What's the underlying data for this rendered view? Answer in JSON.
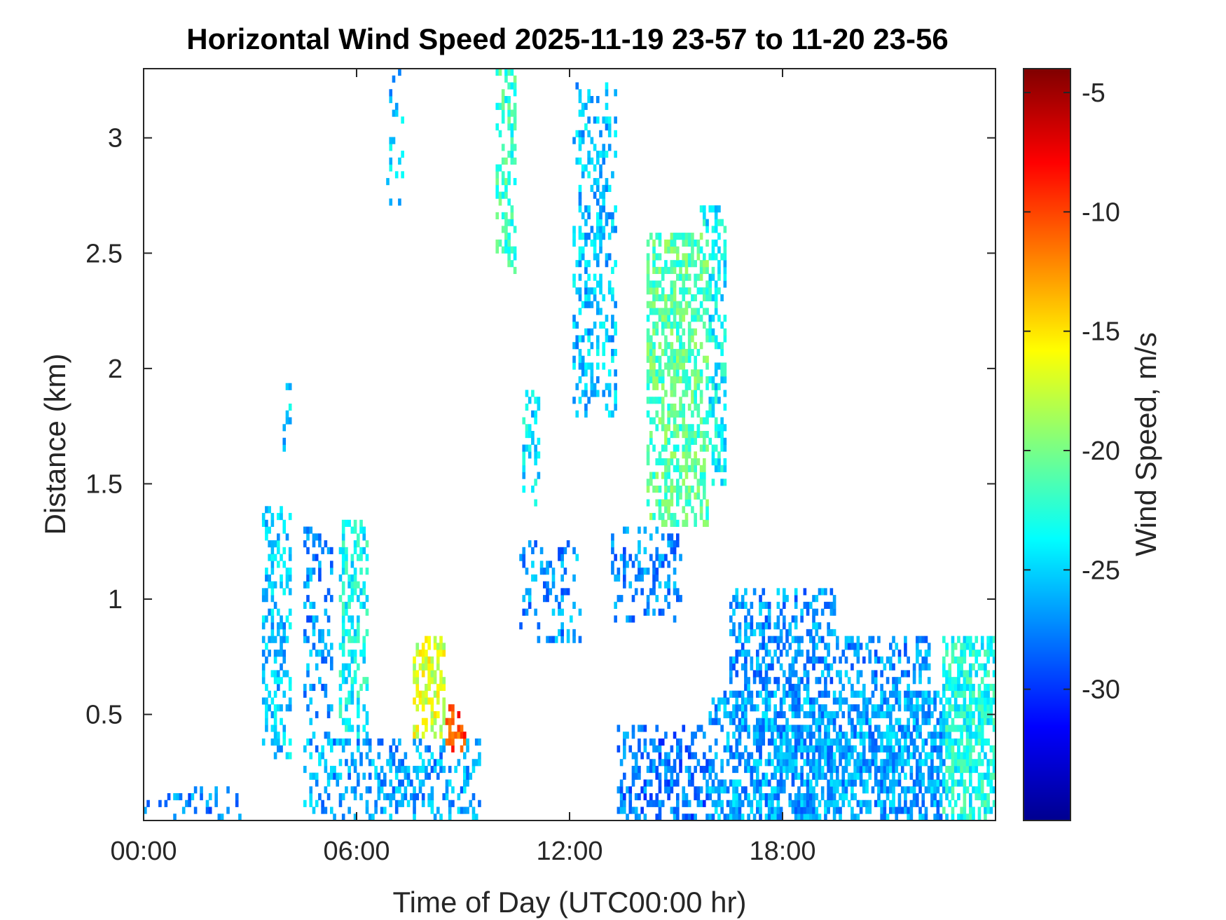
{
  "chart_data": {
    "type": "heatmap",
    "title": "Horizontal Wind Speed 2025-11-19 23-57 to 11-20 23-56",
    "xlabel": "Time of Day (UTC00:00 hr)",
    "ylabel": "Distance (km)",
    "xlim": [
      0,
      24
    ],
    "ylim": [
      0.04,
      3.3
    ],
    "xticks": [
      {
        "value": 0,
        "label": "00:00"
      },
      {
        "value": 6,
        "label": "06:00"
      },
      {
        "value": 12,
        "label": "12:00"
      },
      {
        "value": 18,
        "label": "18:00"
      }
    ],
    "yticks": [
      {
        "value": 0.5,
        "label": "0.5"
      },
      {
        "value": 1,
        "label": "1"
      },
      {
        "value": 1.5,
        "label": "1.5"
      },
      {
        "value": 2,
        "label": "2"
      },
      {
        "value": 2.5,
        "label": "2.5"
      },
      {
        "value": 3,
        "label": "3"
      }
    ],
    "grid": false,
    "colormap": "jet",
    "colorbar": {
      "label": "Wind Speed, m/s",
      "range": [
        -35.5,
        -4.0
      ],
      "ticks": [
        {
          "value": -5,
          "label": "-5"
        },
        {
          "value": -10,
          "label": "-10"
        },
        {
          "value": -15,
          "label": "-15"
        },
        {
          "value": -20,
          "label": "-20"
        },
        {
          "value": -25,
          "label": "-25"
        },
        {
          "value": -30,
          "label": "-30"
        }
      ]
    },
    "blobs": [
      {
        "t": [
          0.0,
          2.8
        ],
        "z": [
          0.04,
          0.2
        ],
        "v": -27.5,
        "d": 0.3
      },
      {
        "t": [
          3.3,
          4.2
        ],
        "z": [
          0.3,
          1.4
        ],
        "v": -25.5,
        "d": 0.55
      },
      {
        "t": [
          3.9,
          4.2
        ],
        "z": [
          1.6,
          1.95
        ],
        "v": -25.5,
        "d": 0.45
      },
      {
        "t": [
          4.5,
          5.3
        ],
        "z": [
          0.04,
          1.3
        ],
        "v": -27,
        "d": 0.35
      },
      {
        "t": [
          5.5,
          6.3
        ],
        "z": [
          0.4,
          1.35
        ],
        "v": -23.5,
        "d": 0.6
      },
      {
        "t": [
          4.5,
          9.5
        ],
        "z": [
          0.04,
          0.4
        ],
        "v": -26.5,
        "d": 0.45
      },
      {
        "t": [
          7.6,
          8.5
        ],
        "z": [
          0.4,
          0.85
        ],
        "v": -17,
        "d": 0.65
      },
      {
        "t": [
          8.5,
          9.1
        ],
        "z": [
          0.35,
          0.55
        ],
        "v": -10,
        "d": 0.55
      },
      {
        "t": [
          6.8,
          7.3
        ],
        "z": [
          2.7,
          3.3
        ],
        "v": -25.5,
        "d": 0.25
      },
      {
        "t": [
          9.9,
          10.5
        ],
        "z": [
          2.4,
          3.3
        ],
        "v": -22,
        "d": 0.55
      },
      {
        "t": [
          10.7,
          11.2
        ],
        "z": [
          1.4,
          1.9
        ],
        "v": -24.5,
        "d": 0.45
      },
      {
        "t": [
          10.6,
          12.3
        ],
        "z": [
          0.8,
          1.25
        ],
        "v": -27,
        "d": 0.3
      },
      {
        "t": [
          12.1,
          13.3
        ],
        "z": [
          1.8,
          3.25
        ],
        "v": -25.5,
        "d": 0.45
      },
      {
        "t": [
          13.2,
          15.2
        ],
        "z": [
          0.9,
          1.3
        ],
        "v": -27.5,
        "d": 0.45
      },
      {
        "t": [
          14.2,
          15.9
        ],
        "z": [
          1.3,
          2.6
        ],
        "v": -21,
        "d": 0.7
      },
      {
        "t": [
          15.7,
          16.4
        ],
        "z": [
          1.5,
          2.7
        ],
        "v": -24,
        "d": 0.55
      },
      {
        "t": [
          13.3,
          16.0
        ],
        "z": [
          0.04,
          0.45
        ],
        "v": -28,
        "d": 0.55
      },
      {
        "t": [
          15.9,
          24.0
        ],
        "z": [
          0.04,
          0.6
        ],
        "v": -26.5,
        "d": 0.78
      },
      {
        "t": [
          16.5,
          19.5
        ],
        "z": [
          0.6,
          1.05
        ],
        "v": -27,
        "d": 0.55
      },
      {
        "t": [
          19.5,
          22.2
        ],
        "z": [
          0.4,
          0.85
        ],
        "v": -27,
        "d": 0.45
      },
      {
        "t": [
          22.5,
          24.0
        ],
        "z": [
          0.04,
          0.85
        ],
        "v": -23,
        "d": 0.85
      }
    ]
  }
}
